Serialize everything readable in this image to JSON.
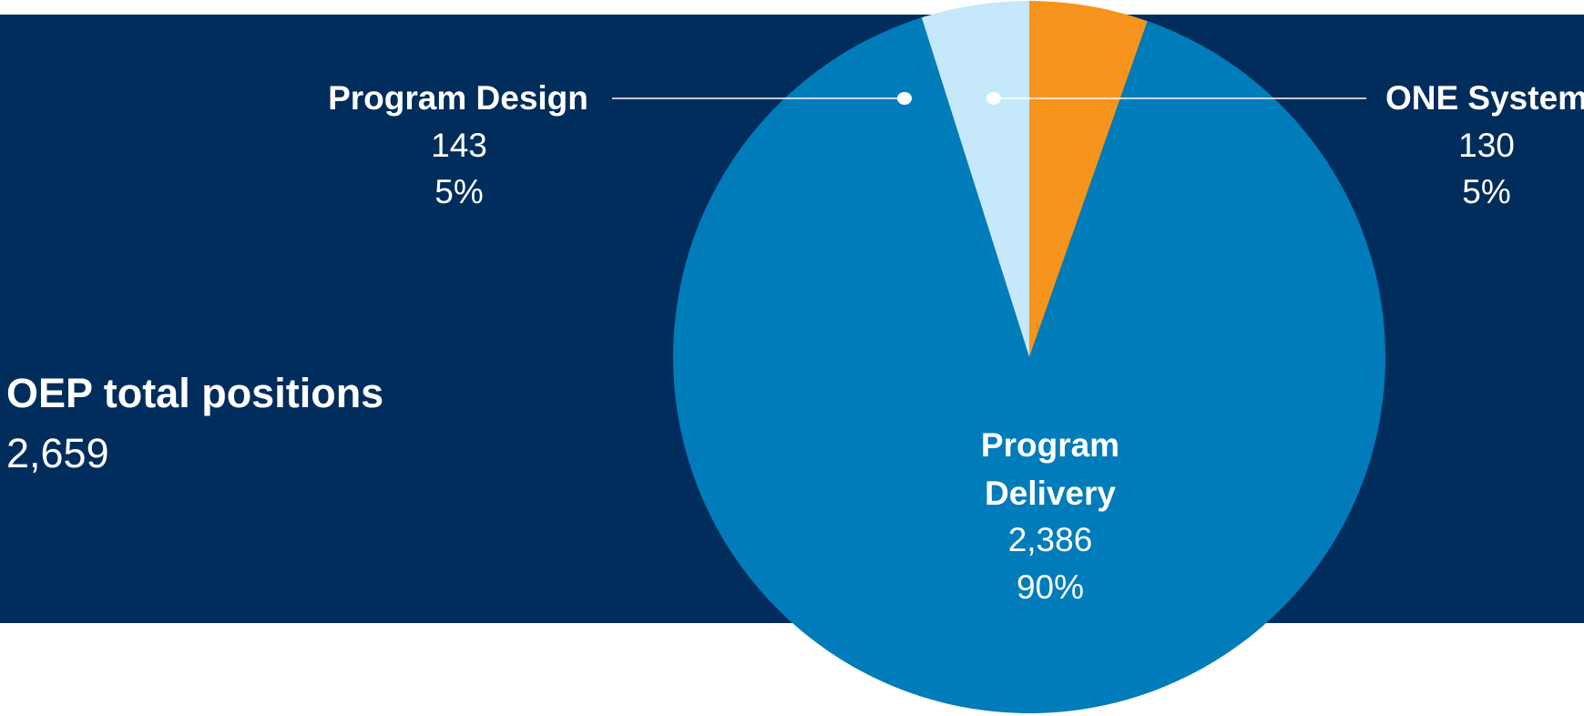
{
  "summary": {
    "title": "OEP total positions",
    "value": "2,659"
  },
  "chart_data": {
    "type": "pie",
    "title": "",
    "slices": [
      {
        "label": "ONE System",
        "value": 130,
        "value_label": "130",
        "percent_label": "5%",
        "color": "#c5e8fb"
      },
      {
        "label": "Program Delivery",
        "label_lines": [
          "Program",
          "Delivery"
        ],
        "value": 2386,
        "value_label": "2,386",
        "percent_label": "90%",
        "color": "#007cba"
      },
      {
        "label": "Program Design",
        "value": 143,
        "value_label": "143",
        "percent_label": "5%",
        "color": "#f7941d"
      }
    ],
    "start_angle": "12 o'clock, counterclockwise",
    "background_color": "#002d5c"
  }
}
